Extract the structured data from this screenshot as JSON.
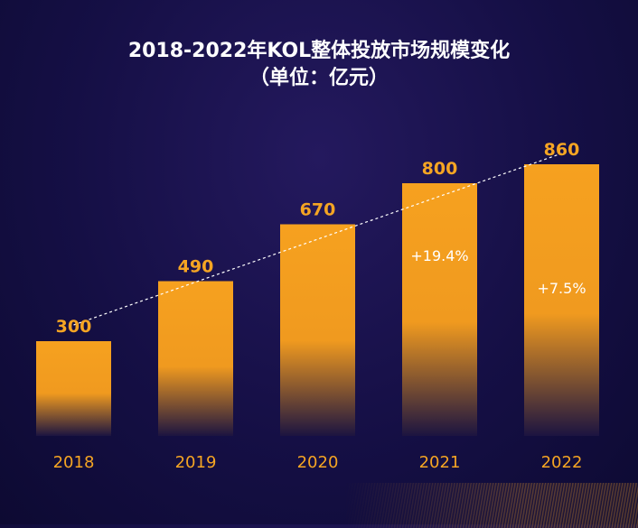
{
  "title": {
    "line1": "2018-2022年KOL整体投放市场规模变化",
    "line2": "（单位：亿元）"
  },
  "chart_data": {
    "type": "bar",
    "categories": [
      "2018",
      "2019",
      "2020",
      "2021",
      "2022"
    ],
    "values": [
      300,
      490,
      670,
      800,
      860
    ],
    "value_labels": [
      "300",
      "490",
      "670",
      "800",
      "860"
    ],
    "ylim": [
      0,
      1000
    ],
    "grid": false,
    "trend_line": true,
    "annotations": [
      {
        "category": "2021",
        "text": "+19.4%"
      },
      {
        "category": "2022",
        "text": "+7.5%"
      }
    ],
    "colors": {
      "bar": "#f5a020",
      "value_label": "#f5a523",
      "tick_label": "#f5a523",
      "annotation": "#ffffff",
      "trend": "#ffffff"
    }
  }
}
